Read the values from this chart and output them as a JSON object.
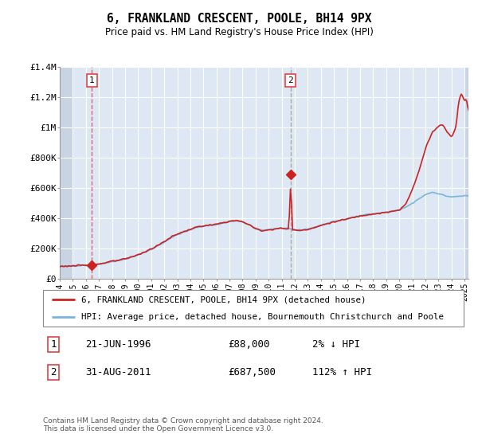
{
  "title": "6, FRANKLAND CRESCENT, POOLE, BH14 9PX",
  "subtitle": "Price paid vs. HM Land Registry's House Price Index (HPI)",
  "legend_line1": "6, FRANKLAND CRESCENT, POOLE, BH14 9PX (detached house)",
  "legend_line2": "HPI: Average price, detached house, Bournemouth Christchurch and Poole",
  "annotation1_label": "1",
  "annotation1_date": "21-JUN-1996",
  "annotation1_price": 88000,
  "annotation1_hpi": "2% ↓ HPI",
  "annotation2_label": "2",
  "annotation2_date": "31-AUG-2011",
  "annotation2_price": 687500,
  "annotation2_hpi": "112% ↑ HPI",
  "footer": "Contains HM Land Registry data © Crown copyright and database right 2024.\nThis data is licensed under the Open Government Licence v3.0.",
  "ylim": [
    0,
    1400000
  ],
  "yticks": [
    0,
    200000,
    400000,
    600000,
    800000,
    1000000,
    1200000,
    1400000
  ],
  "ytick_labels": [
    "£0",
    "£200K",
    "£400K",
    "£600K",
    "£800K",
    "£1M",
    "£1.2M",
    "£1.4M"
  ],
  "hpi_color": "#7ab4d8",
  "price_color": "#cc2222",
  "vline1_color": "#dd4444",
  "vline2_color": "#aaaaaa",
  "bg_color": "#dde8f4",
  "hatch_color": "#c8d4e4",
  "sale1_x": 1996.47,
  "sale1_y": 88000,
  "sale2_x": 2011.67,
  "sale2_y": 687500,
  "xmin": 1994.0,
  "xmax": 2025.3
}
